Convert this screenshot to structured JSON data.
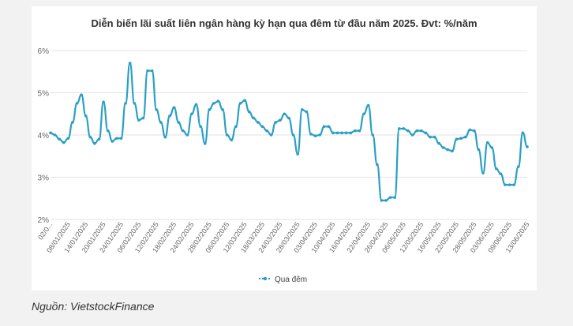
{
  "source_note": "Nguồn: VietstockFinance",
  "chart_data": {
    "type": "line",
    "title": "Diễn biến lãi suất liên ngân hàng kỳ hạn qua đêm từ đầu năm 2025. Đvt: %/năm",
    "xlabel": "",
    "ylabel": "",
    "ylim": [
      2,
      6
    ],
    "yticks": [
      "2%",
      "3%",
      "4%",
      "5%",
      "6%"
    ],
    "grid": true,
    "legend_position": "bottom",
    "line_color": "#2a9fc4",
    "xtick_labels": [
      "02/0...",
      "08/01/2025",
      "14/01/2025",
      "20/01/2025",
      "24/01/2025",
      "06/02/2025",
      "12/02/2025",
      "18/02/2025",
      "24/02/2025",
      "28/02/2025",
      "06/03/2025",
      "12/03/2025",
      "18/03/2025",
      "24/03/2025",
      "28/03/2025",
      "03/04/2025",
      "10/04/2025",
      "16/04/2025",
      "22/04/2025",
      "26/04/2025",
      "06/05/2025",
      "12/05/2025",
      "16/05/2025",
      "22/05/2025",
      "28/05/2025",
      "03/06/2025",
      "09/06/2025",
      "13/06/2025"
    ],
    "series": [
      {
        "name": "Qua đêm",
        "values": [
          4.05,
          4.0,
          3.9,
          3.82,
          3.92,
          4.3,
          4.75,
          4.95,
          4.45,
          3.95,
          3.8,
          3.9,
          4.78,
          4.1,
          3.85,
          3.92,
          3.92,
          4.75,
          5.7,
          4.75,
          4.35,
          4.4,
          5.52,
          5.52,
          4.6,
          4.3,
          3.95,
          4.45,
          4.65,
          4.3,
          4.1,
          4.0,
          4.5,
          4.72,
          4.2,
          3.8,
          4.6,
          4.75,
          4.8,
          4.6,
          4.0,
          3.88,
          4.2,
          4.75,
          4.82,
          4.55,
          4.4,
          4.3,
          4.2,
          4.1,
          4.0,
          4.3,
          4.35,
          4.5,
          4.4,
          4.0,
          3.55,
          4.6,
          4.55,
          4.02,
          3.98,
          4.0,
          4.2,
          4.2,
          4.05,
          4.05,
          4.05,
          4.05,
          4.05,
          4.1,
          4.1,
          4.5,
          4.7,
          4.0,
          3.3,
          2.45,
          2.45,
          2.52,
          2.52,
          4.15,
          4.15,
          4.1,
          4.0,
          4.1,
          4.1,
          4.05,
          3.95,
          3.95,
          3.8,
          3.7,
          3.65,
          3.62,
          3.9,
          3.92,
          3.95,
          4.12,
          4.1,
          3.65,
          3.1,
          3.82,
          3.7,
          3.2,
          3.08,
          2.82,
          2.82,
          2.82,
          3.25,
          4.05,
          3.72
        ]
      }
    ]
  }
}
